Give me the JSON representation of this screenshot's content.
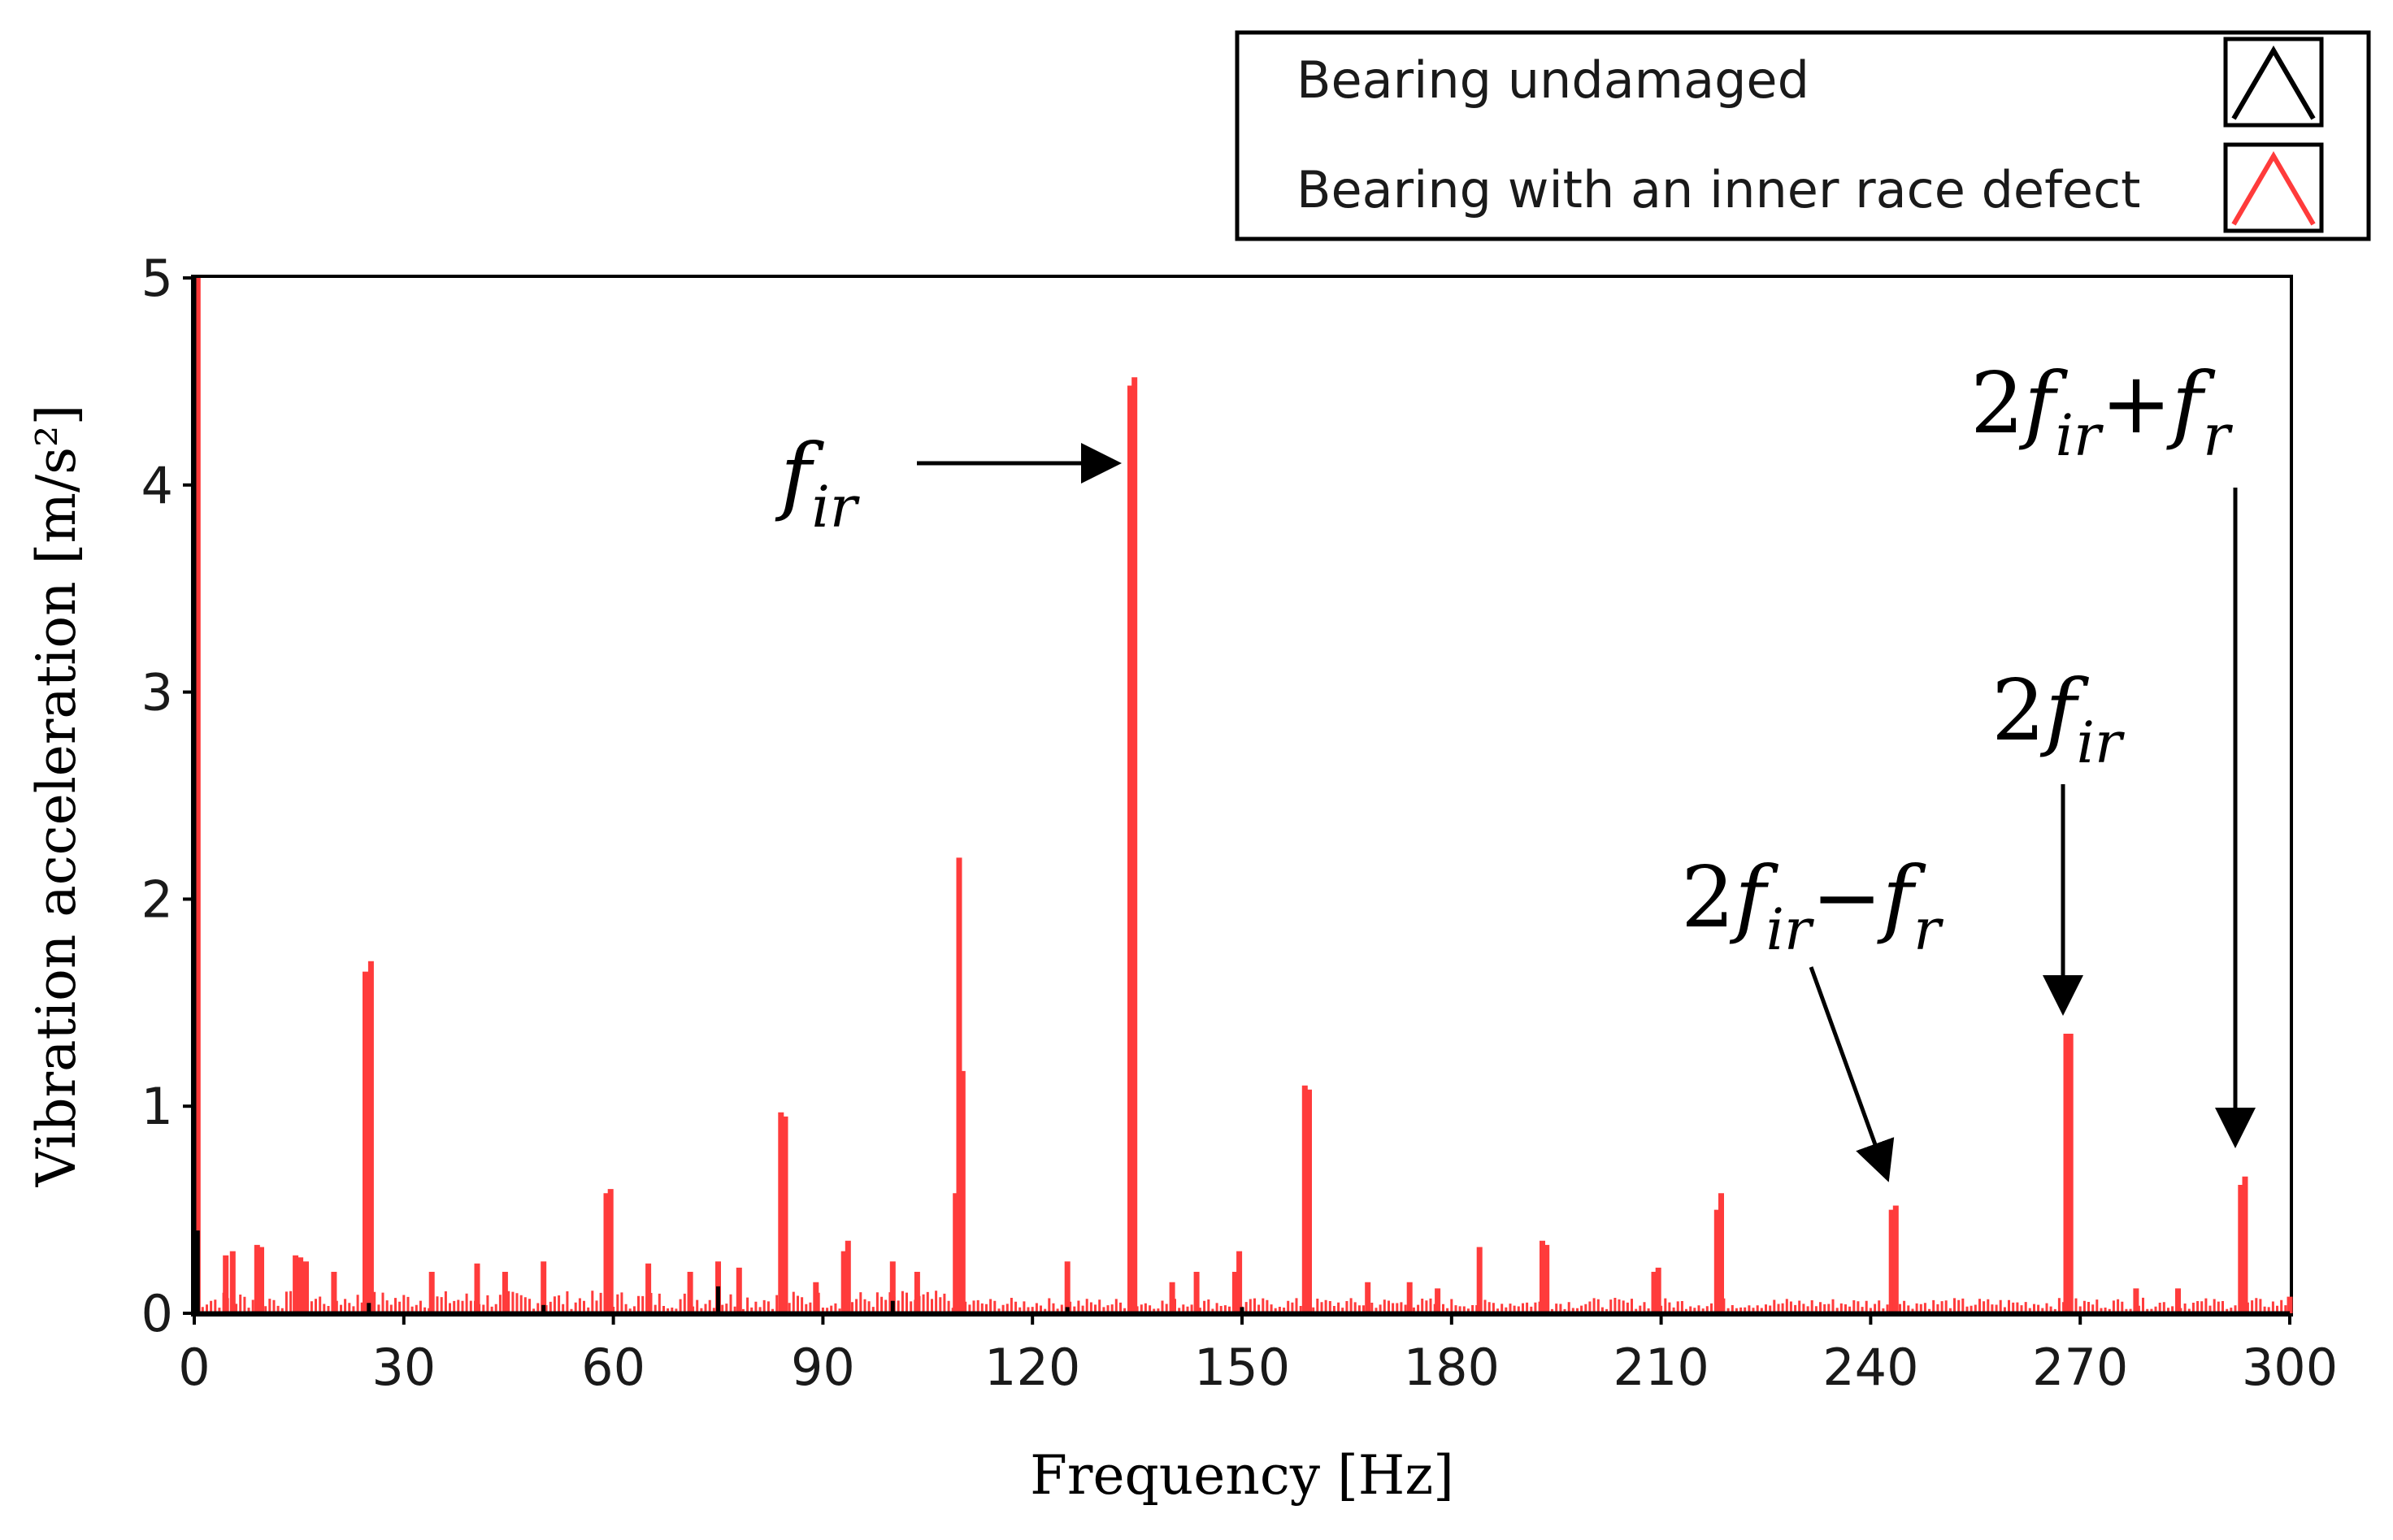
{
  "chart_data": {
    "type": "bar",
    "title": "",
    "xlabel": "Frequency [Hz]",
    "ylabel": "Vibration acceleration [m/s²]",
    "xlim": [
      0,
      300
    ],
    "ylim": [
      0,
      5
    ],
    "xticks": [
      0,
      30,
      60,
      90,
      120,
      150,
      180,
      210,
      240,
      270,
      300
    ],
    "yticks": [
      0,
      1,
      2,
      3,
      4,
      5
    ],
    "grid": false,
    "legend_position": "top-right",
    "colors": {
      "undamaged": "#000000",
      "defect": "#ff3b3b"
    },
    "series": [
      {
        "name": "Bearing undamaged",
        "color": "#000000",
        "x": [
          0,
          0.5,
          25,
          50,
          75,
          100,
          125,
          150
        ],
        "values": [
          0.58,
          0.4,
          0.05,
          0.04,
          0.13,
          0.06,
          0.03,
          0.03
        ]
      },
      {
        "name": "Bearing with an inner race defect",
        "color": "#ff3b3b",
        "x": [
          0.5,
          4.5,
          5.5,
          9,
          9.6,
          14.5,
          15.2,
          16,
          20,
          24.5,
          25.3,
          34,
          40.5,
          44.5,
          50,
          59,
          59.6,
          65,
          71,
          75,
          78,
          84,
          84.6,
          89,
          93,
          93.6,
          100,
          103.5,
          109,
          109.5,
          110,
          125,
          134,
          134.6,
          140,
          143.5,
          149,
          149.6,
          159,
          159.6,
          168,
          174,
          178,
          184,
          193,
          193.6,
          209,
          209.6,
          218,
          218.6,
          243,
          243.6,
          268,
          268.6,
          278,
          284,
          293,
          293.6,
          300
        ],
        "values": [
          5.0,
          0.28,
          0.3,
          0.33,
          0.32,
          0.28,
          0.27,
          0.25,
          0.2,
          1.65,
          1.7,
          0.2,
          0.24,
          0.2,
          0.25,
          0.58,
          0.6,
          0.24,
          0.2,
          0.25,
          0.22,
          0.97,
          0.95,
          0.15,
          0.3,
          0.35,
          0.25,
          0.2,
          0.58,
          2.2,
          1.17,
          0.25,
          4.48,
          4.52,
          0.15,
          0.2,
          0.2,
          0.3,
          1.1,
          1.08,
          0.15,
          0.15,
          0.12,
          0.32,
          0.35,
          0.33,
          0.2,
          0.22,
          0.5,
          0.58,
          0.5,
          0.52,
          1.35,
          1.35,
          0.12,
          0.12,
          0.62,
          0.66,
          0.08
        ]
      }
    ],
    "legend": [
      "Bearing undamaged",
      "Bearing with an inner race defect"
    ],
    "annotations": [
      {
        "id": "fir",
        "prefix": "",
        "base1": "f",
        "sub1": "ir",
        "op": "",
        "base2": "",
        "sub2": "",
        "target_x": 134,
        "target_y": 4.2
      },
      {
        "id": "2fir-fr",
        "prefix": "2",
        "base1": "f",
        "sub1": "ir",
        "op": "−",
        "base2": "f",
        "sub2": "r",
        "target_x": 243,
        "target_y": 0.65
      },
      {
        "id": "2fir",
        "prefix": "2",
        "base1": "f",
        "sub1": "ir",
        "op": "",
        "base2": "",
        "sub2": "",
        "target_x": 268,
        "target_y": 1.45
      },
      {
        "id": "2fir+fr",
        "prefix": "2",
        "base1": "f",
        "sub1": "ir",
        "op": "+",
        "base2": "f",
        "sub2": "r",
        "target_x": 293,
        "target_y": 0.78
      }
    ]
  }
}
